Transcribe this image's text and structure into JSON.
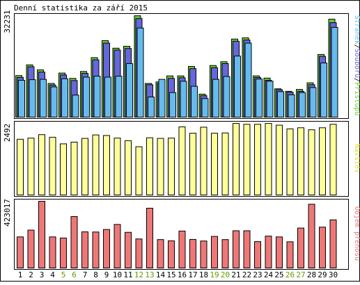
{
  "chart_data": {
    "type": "bar",
    "title": "Denní statistika za září 2015",
    "categories": [
      "1",
      "2",
      "3",
      "4",
      "5",
      "6",
      "7",
      "8",
      "9",
      "10",
      "11",
      "12",
      "13",
      "14",
      "15",
      "16",
      "17",
      "18",
      "19",
      "20",
      "21",
      "22",
      "23",
      "24",
      "25",
      "26",
      "27",
      "28",
      "29",
      "30"
    ],
    "weekend_days": [
      "5",
      "6",
      "12",
      "13",
      "19",
      "20",
      "26",
      "27"
    ],
    "colors": {
      "pristupu": "#66cc33",
      "souboru": "#6666dd",
      "stranek": "#66bbee",
      "navstev": "#ffff99",
      "objem": "#ee7777",
      "weekend_label": "#669900",
      "weekday_label": "#000000"
    },
    "panels": [
      {
        "id": "hits",
        "ymax_label": "32231",
        "ymax": 32231,
        "legend": [
          {
            "text": "Stránek",
            "color": "#66bbee"
          },
          {
            "text": "/",
            "color": "#000000"
          },
          {
            "text": "Souborů",
            "color": "#6666dd"
          },
          {
            "text": "/",
            "color": "#000000"
          },
          {
            "text": "Přístupů",
            "color": "#66cc33"
          }
        ],
        "series": [
          {
            "name": "Přístupů",
            "values": [
              13200,
              16600,
              15000,
              10700,
              14000,
              12300,
              14500,
              18900,
              24300,
              21900,
              22500,
              32200,
              10700,
              11200,
              13100,
              13100,
              16100,
              7300,
              16400,
              17600,
              24800,
              25200,
              13100,
              12400,
              9000,
              8200,
              8800,
              10900,
              19900,
              31100
            ]
          },
          {
            "name": "Souborů",
            "values": [
              12600,
              16000,
              14300,
              10200,
              13400,
              11600,
              13900,
              18200,
              23500,
              21300,
              21800,
              31300,
              10300,
              10700,
              12300,
              12500,
              15400,
              6800,
              15700,
              17000,
              24100,
              24500,
              12600,
              11700,
              8700,
              7900,
              8200,
              10300,
              19300,
              30000
            ]
          },
          {
            "name": "Stránek",
            "values": [
              11700,
              11900,
              12000,
              9600,
              12200,
              7000,
              12700,
              13000,
              12700,
              13000,
              17000,
              28300,
              6400,
              12000,
              7800,
              11400,
              9800,
              5900,
              12000,
              12900,
              19400,
              23500,
              12100,
              11400,
              8100,
              7100,
              7800,
              9400,
              17200,
              28500
            ]
          }
        ]
      },
      {
        "id": "visits",
        "ymax_label": "2492",
        "ymax": 2492,
        "legend": [
          {
            "text": "Návštěv",
            "color": "#dddd33"
          }
        ],
        "series": [
          {
            "name": "Návštěv",
            "values": [
              1940,
              1980,
              2100,
              2010,
              1780,
              1840,
              1970,
              2090,
              2070,
              1980,
              1890,
              1680,
              1990,
              1970,
              1980,
              2370,
              2150,
              2360,
              2150,
              2160,
              2490,
              2460,
              2460,
              2490,
              2430,
              2300,
              2340,
              2270,
              2340,
              2460
            ]
          }
        ]
      },
      {
        "id": "volume",
        "ymax_label": "423017",
        "ymax": 423017,
        "legend": [
          {
            "text": "Objem přenosu",
            "color": "#ee7777"
          }
        ],
        "series": [
          {
            "name": "Objem přenosu",
            "values": [
              197000,
              240000,
              423000,
              197000,
              190000,
              326000,
              229000,
              228000,
              244000,
              276000,
              226000,
              184000,
              379000,
              180000,
              172000,
              234000,
              181000,
              171000,
              200000,
              180000,
              236000,
              236000,
              167000,
              202000,
              197000,
              166000,
              253000,
              404000,
              259000,
              305000
            ]
          }
        ]
      }
    ]
  }
}
